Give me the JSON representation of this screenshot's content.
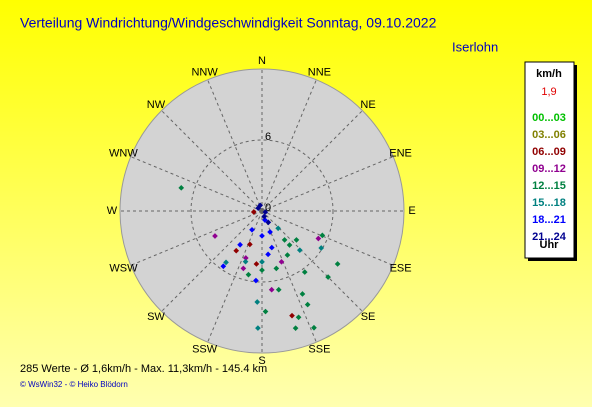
{
  "chart_data": {
    "type": "polar-scatter",
    "title": "Verteilung Windrichtung/Windgeschwindigkeit  Sonntag, 09.10.2022",
    "subtitle": "Iserlohn",
    "directions": [
      "N",
      "NNE",
      "NE",
      "ENE",
      "E",
      "ESE",
      "SE",
      "SSE",
      "S",
      "SSW",
      "SW",
      "WSW",
      "W",
      "WNW",
      "NW",
      "NNW"
    ],
    "rlim": [
      0,
      12
    ],
    "rticks": [
      0,
      6
    ],
    "legend_title": "km/h",
    "legend_value": {
      "value": 1.9,
      "label": "1,9"
    },
    "legend_footer": "Uhr",
    "series": [
      {
        "name": "00...03",
        "color": "#00c000",
        "x": [],
        "values": []
      },
      {
        "name": "03...06",
        "color": "#808000",
        "x": [],
        "values": []
      },
      {
        "name": "06...09",
        "color": "#900000",
        "x": [
          164,
          213,
          200,
          186,
          263
        ],
        "values": [
          9.2,
          4.0,
          3.0,
          4.5,
          0.7
        ]
      },
      {
        "name": "09...12",
        "color": "#900090",
        "x": [
          198,
          242,
          199,
          159,
          173,
          116
        ],
        "values": [
          5.1,
          4.5,
          4.2,
          4.6,
          6.7,
          5.3
        ]
      },
      {
        "name": "12...15",
        "color": "#008040",
        "x": [
          286,
          156,
          161,
          154,
          125,
          135,
          112,
          178,
          142,
          141,
          130,
          166,
          192,
          180,
          145,
          150,
          168,
          154,
          164
        ],
        "values": [
          7.1,
          10.8,
          9.5,
          8.8,
          7.8,
          7.9,
          5.5,
          8.5,
          3.1,
          3.7,
          3.8,
          5.0,
          5.5,
          5.0,
          6.3,
          4.3,
          6.8,
          7.8,
          10.3
        ]
      },
      {
        "name": "15...18",
        "color": "#008080",
        "x": [
          122,
          183,
          182,
          137,
          136,
          198,
          215,
          180
        ],
        "values": [
          5.9,
          7.7,
          9.9,
          2.0,
          4.6,
          4.5,
          5.3,
          4.3
        ]
      },
      {
        "name": "18...21",
        "color": "#0000ff",
        "x": [
          185,
          215,
          208,
          180,
          159,
          172,
          162,
          213,
          165
        ],
        "values": [
          5.9,
          5.7,
          1.8,
          2.1,
          1.9,
          3.7,
          0.8,
          3.4,
          3.2
        ]
      },
      {
        "name": "21...24",
        "color": "#000090",
        "x": [
          158,
          342,
          307,
          108,
          151
        ],
        "values": [
          0.5,
          0.5,
          0.4,
          0.3,
          1.1
        ]
      }
    ],
    "footer": "285 Werte   -   Ø 1,6km/h  -  Max. 11,3km/h   -   145.4 km",
    "copyright": "© WsWin32  -  © Heiko Blödorn"
  }
}
